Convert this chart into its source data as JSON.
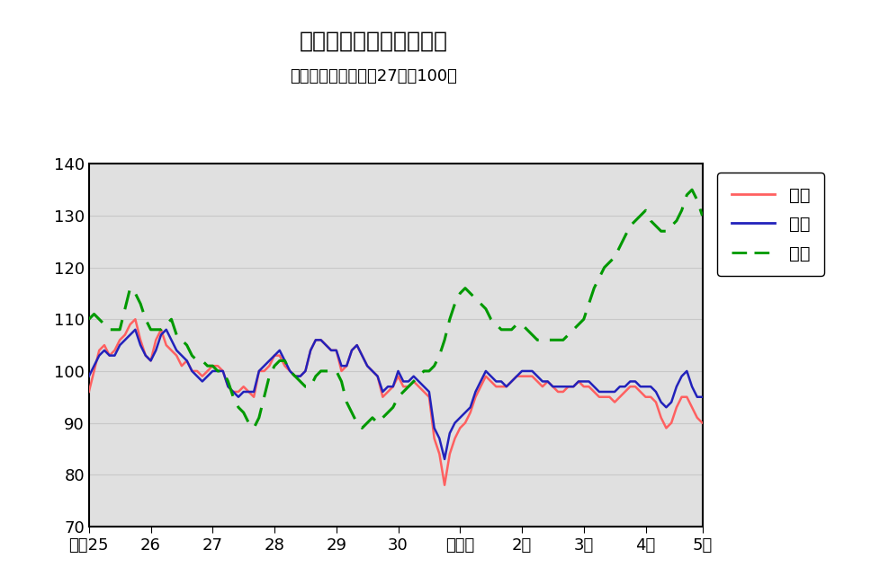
{
  "title": "鳥取県鉱工業指数の推移",
  "subtitle": "（季節調整済、平成27年＝100）",
  "legend_labels": [
    "生産",
    "出荷",
    "在庫"
  ],
  "x_tick_labels": [
    "平成25",
    "26",
    "27",
    "28",
    "29",
    "30",
    "令和元",
    "2年",
    "3年",
    "4年",
    "5年"
  ],
  "ylim": [
    70,
    140
  ],
  "yticks": [
    70,
    80,
    90,
    100,
    110,
    120,
    130,
    140
  ],
  "plot_bg_color": "#e0e0e0",
  "fig_bg_color": "#ffffff",
  "grid_color": "#b0b0b0",
  "production": [
    96,
    100,
    104,
    105,
    103,
    104,
    106,
    107,
    109,
    110,
    106,
    103,
    102,
    106,
    108,
    105,
    104,
    103,
    101,
    102,
    100,
    100,
    99,
    100,
    101,
    101,
    100,
    97,
    96,
    96,
    97,
    96,
    95,
    100,
    100,
    101,
    103,
    103,
    101,
    100,
    99,
    99,
    100,
    104,
    106,
    106,
    105,
    104,
    104,
    100,
    101,
    104,
    105,
    103,
    101,
    100,
    99,
    95,
    96,
    97,
    99,
    97,
    97,
    98,
    97,
    96,
    95,
    87,
    84,
    78,
    84,
    87,
    89,
    90,
    92,
    95,
    97,
    99,
    98,
    97,
    97,
    97,
    98,
    99,
    99,
    99,
    99,
    98,
    97,
    98,
    97,
    96,
    96,
    97,
    97,
    98,
    97,
    97,
    96,
    95,
    95,
    95,
    94,
    95,
    96,
    97,
    97,
    96,
    95,
    95,
    94,
    91,
    89,
    90,
    93,
    95,
    95,
    93,
    91,
    90
  ],
  "shipment": [
    99,
    101,
    103,
    104,
    103,
    103,
    105,
    106,
    107,
    108,
    105,
    103,
    102,
    104,
    107,
    108,
    106,
    104,
    103,
    102,
    100,
    99,
    98,
    99,
    100,
    100,
    100,
    97,
    96,
    95,
    96,
    96,
    96,
    100,
    101,
    102,
    103,
    104,
    102,
    100,
    99,
    99,
    100,
    104,
    106,
    106,
    105,
    104,
    104,
    101,
    101,
    104,
    105,
    103,
    101,
    100,
    99,
    96,
    97,
    97,
    100,
    98,
    98,
    99,
    98,
    97,
    96,
    89,
    87,
    83,
    88,
    90,
    91,
    92,
    93,
    96,
    98,
    100,
    99,
    98,
    98,
    97,
    98,
    99,
    100,
    100,
    100,
    99,
    98,
    98,
    97,
    97,
    97,
    97,
    97,
    98,
    98,
    98,
    97,
    96,
    96,
    96,
    96,
    97,
    97,
    98,
    98,
    97,
    97,
    97,
    96,
    94,
    93,
    94,
    97,
    99,
    100,
    97,
    95,
    95
  ],
  "inventory": [
    110,
    111,
    110,
    109,
    108,
    108,
    108,
    112,
    116,
    115,
    113,
    110,
    108,
    108,
    108,
    109,
    110,
    107,
    106,
    105,
    103,
    102,
    102,
    101,
    101,
    100,
    100,
    98,
    95,
    93,
    92,
    90,
    89,
    91,
    95,
    99,
    101,
    102,
    102,
    100,
    99,
    98,
    97,
    97,
    99,
    100,
    100,
    100,
    100,
    98,
    94,
    92,
    90,
    89,
    90,
    91,
    90,
    91,
    92,
    93,
    95,
    96,
    97,
    98,
    99,
    100,
    100,
    101,
    103,
    106,
    110,
    113,
    115,
    116,
    115,
    114,
    113,
    112,
    110,
    109,
    108,
    108,
    108,
    109,
    109,
    108,
    107,
    106,
    106,
    106,
    106,
    106,
    106,
    107,
    108,
    109,
    110,
    113,
    116,
    118,
    120,
    121,
    122,
    124,
    126,
    128,
    129,
    130,
    131,
    129,
    128,
    127,
    127,
    128,
    129,
    131,
    134,
    135,
    133,
    130
  ],
  "n_points": 120,
  "production_color": "#ff6060",
  "shipment_color": "#2222bb",
  "inventory_color": "#009900",
  "title_fontsize": 18,
  "subtitle_fontsize": 13,
  "tick_fontsize": 13,
  "legend_fontsize": 14
}
